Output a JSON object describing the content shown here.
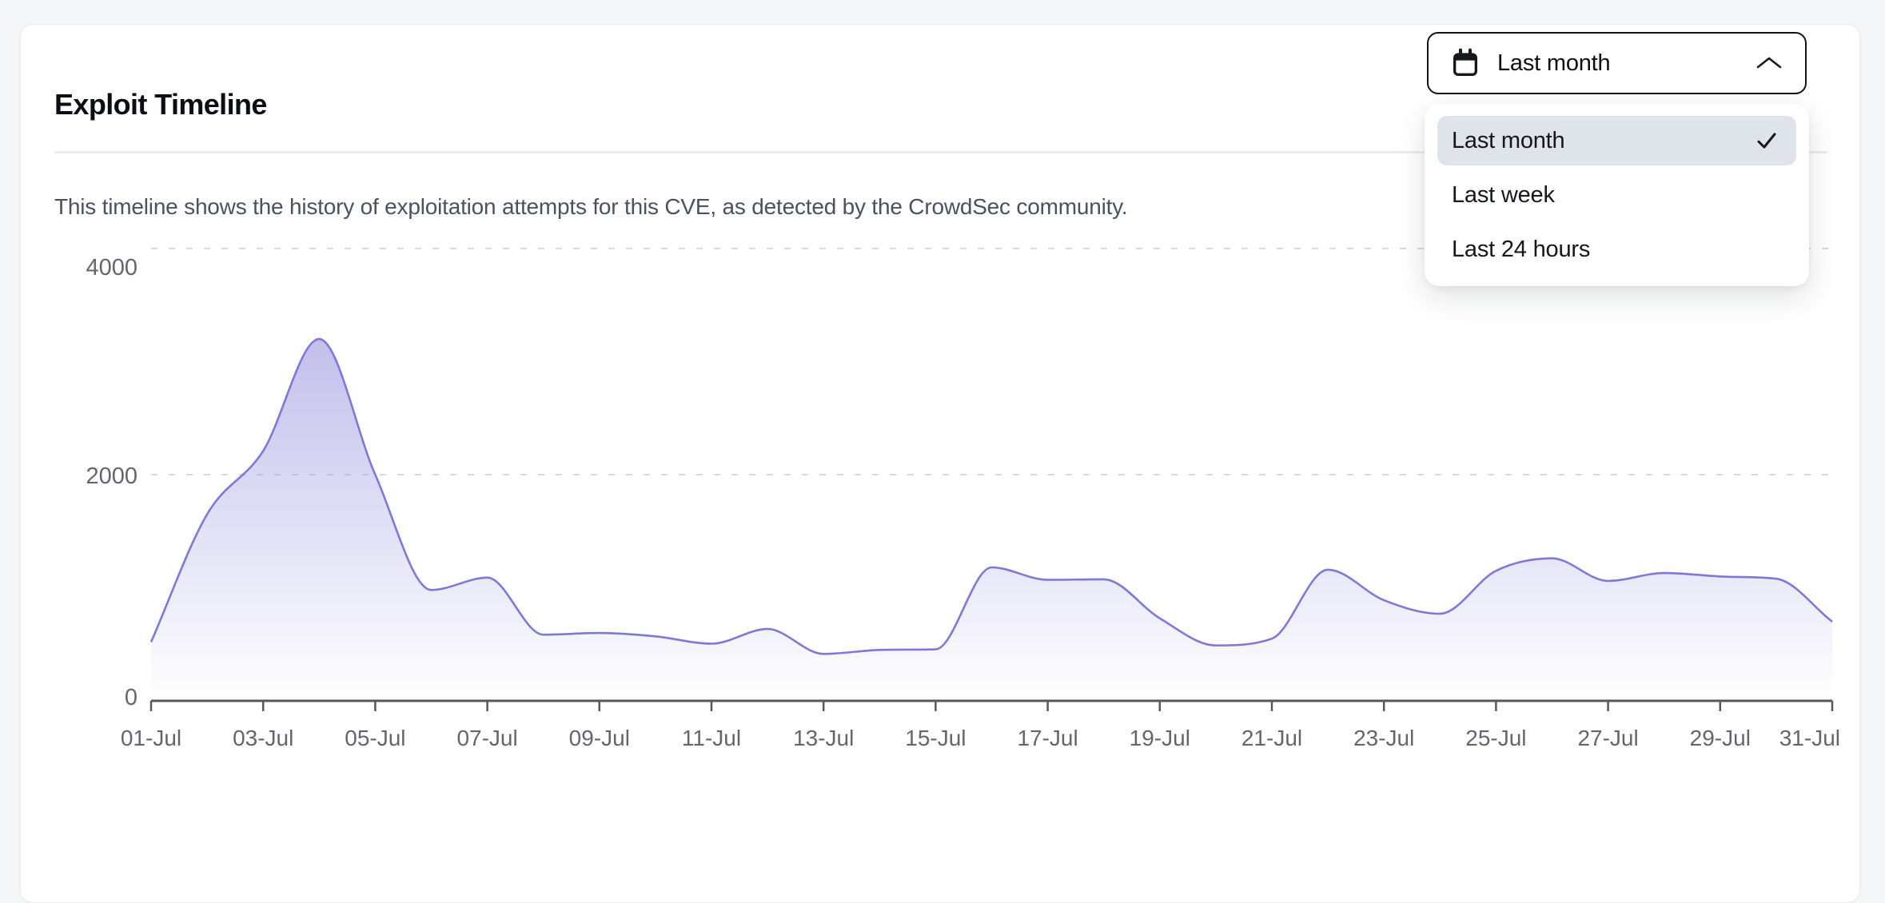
{
  "header": {
    "title": "Exploit Timeline",
    "description": "This timeline shows the history of exploitation attempts for this CVE, as detected by the CrowdSec community."
  },
  "dropdown": {
    "selected_label": "Last month",
    "options": [
      {
        "label": "Last month",
        "selected": true
      },
      {
        "label": "Last week",
        "selected": false
      },
      {
        "label": "Last 24 hours",
        "selected": false
      }
    ]
  },
  "chart_data": {
    "type": "area",
    "title": "Exploit Timeline",
    "xlabel": "",
    "ylabel": "",
    "x": [
      "01-Jul",
      "02-Jul",
      "03-Jul",
      "04-Jul",
      "05-Jul",
      "06-Jul",
      "07-Jul",
      "08-Jul",
      "09-Jul",
      "10-Jul",
      "11-Jul",
      "12-Jul",
      "13-Jul",
      "14-Jul",
      "15-Jul",
      "16-Jul",
      "17-Jul",
      "18-Jul",
      "19-Jul",
      "20-Jul",
      "21-Jul",
      "22-Jul",
      "23-Jul",
      "24-Jul",
      "25-Jul",
      "26-Jul",
      "27-Jul",
      "28-Jul",
      "29-Jul",
      "30-Jul",
      "31-Jul"
    ],
    "values": [
      520,
      1650,
      2210,
      3200,
      2000,
      980,
      1090,
      585,
      600,
      570,
      505,
      635,
      415,
      450,
      455,
      1180,
      1070,
      1075,
      730,
      490,
      550,
      1160,
      890,
      770,
      1150,
      1260,
      1060,
      1130,
      1100,
      1080,
      700
    ],
    "y_ticks": [
      {
        "value": 0,
        "label": "0"
      },
      {
        "value": 2000,
        "label": "2000"
      },
      {
        "value": 4000,
        "label": "4000"
      }
    ],
    "x_tick_interval": 2,
    "ylim": [
      0,
      4300
    ],
    "grid": "dashed-horizontal",
    "legend": "none",
    "line_color": "#7e78d9",
    "fill_color": "#8580d8",
    "axis_color": "#56585e",
    "grid_color": "#d9dadd"
  }
}
